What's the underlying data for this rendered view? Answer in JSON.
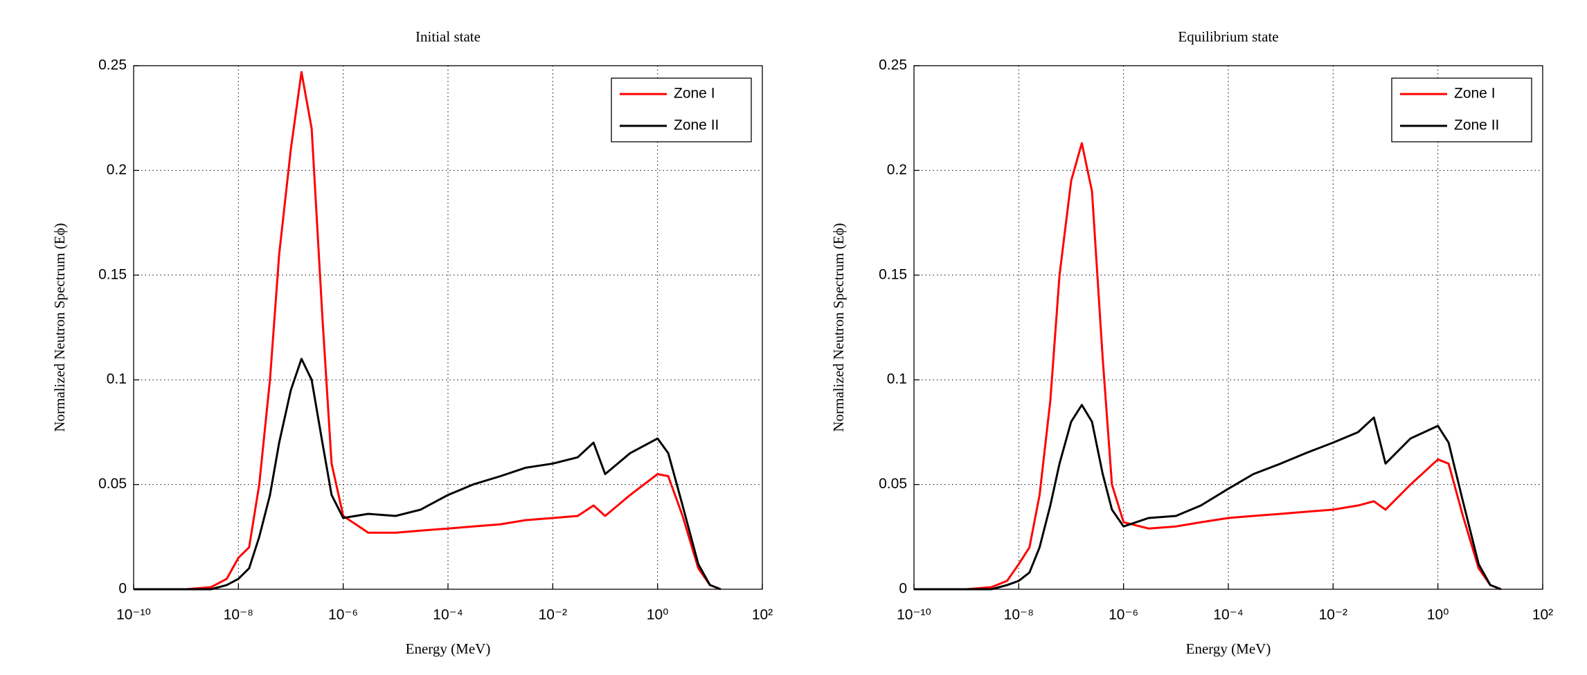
{
  "chart_data": [
    {
      "type": "line",
      "title": "Initial state",
      "xlabel": "Energy (MeV)",
      "ylabel": "Normalized Neutron Spectrum (Eϕ)",
      "xscale": "log",
      "grid": true,
      "legend": "top-right",
      "x": [
        1e-10,
        1e-09,
        3e-09,
        6e-09,
        1e-08,
        1.6e-08,
        2.5e-08,
        4e-08,
        6e-08,
        1e-07,
        1.6e-07,
        2.5e-07,
        4e-07,
        6e-07,
        1e-06,
        3e-06,
        1e-05,
        3e-05,
        0.0001,
        0.0003,
        0.001,
        0.003,
        0.01,
        0.03,
        0.06,
        0.1,
        0.3,
        1,
        1.6,
        3,
        6,
        10,
        16
      ],
      "series": [
        {
          "name": "Zone I",
          "color": "#ff0000",
          "values": [
            0,
            0,
            0.001,
            0.005,
            0.015,
            0.02,
            0.05,
            0.1,
            0.16,
            0.21,
            0.247,
            0.22,
            0.13,
            0.06,
            0.035,
            0.027,
            0.027,
            0.028,
            0.029,
            0.03,
            0.031,
            0.033,
            0.034,
            0.035,
            0.04,
            0.035,
            0.045,
            0.055,
            0.054,
            0.035,
            0.01,
            0.002,
            0
          ]
        },
        {
          "name": "Zone II",
          "color": "#000000",
          "values": [
            0,
            0,
            0,
            0.002,
            0.005,
            0.01,
            0.025,
            0.045,
            0.07,
            0.095,
            0.11,
            0.1,
            0.07,
            0.045,
            0.034,
            0.036,
            0.035,
            0.038,
            0.045,
            0.05,
            0.054,
            0.058,
            0.06,
            0.063,
            0.07,
            0.055,
            0.065,
            0.072,
            0.065,
            0.04,
            0.012,
            0.002,
            0
          ]
        }
      ],
      "xlim": [
        1e-10,
        100
      ],
      "xticks": [
        {
          "value": 1e-10,
          "label": "10⁻¹⁰"
        },
        {
          "value": 1e-08,
          "label": "10⁻⁸"
        },
        {
          "value": 1e-06,
          "label": "10⁻⁶"
        },
        {
          "value": 0.0001,
          "label": "10⁻⁴"
        },
        {
          "value": 0.01,
          "label": "10⁻²"
        },
        {
          "value": 1,
          "label": "10⁰"
        },
        {
          "value": 100,
          "label": "10²"
        }
      ],
      "ylim": [
        0,
        0.25
      ],
      "yticks": [
        0,
        0.05,
        0.1,
        0.15,
        0.2,
        0.25
      ]
    },
    {
      "type": "line",
      "title": "Equilibrium state",
      "xlabel": "Energy (MeV)",
      "ylabel": "Normalized Neutron Spectrum (Eϕ)",
      "xscale": "log",
      "grid": true,
      "legend": "top-right",
      "x": [
        1e-10,
        1e-09,
        3e-09,
        6e-09,
        1e-08,
        1.6e-08,
        2.5e-08,
        4e-08,
        6e-08,
        1e-07,
        1.6e-07,
        2.5e-07,
        4e-07,
        6e-07,
        1e-06,
        3e-06,
        1e-05,
        3e-05,
        0.0001,
        0.0003,
        0.001,
        0.003,
        0.01,
        0.03,
        0.06,
        0.1,
        0.3,
        1,
        1.6,
        3,
        6,
        10,
        16
      ],
      "series": [
        {
          "name": "Zone I",
          "color": "#ff0000",
          "values": [
            0,
            0,
            0.001,
            0.004,
            0.012,
            0.02,
            0.045,
            0.09,
            0.15,
            0.195,
            0.213,
            0.19,
            0.11,
            0.05,
            0.032,
            0.029,
            0.03,
            0.032,
            0.034,
            0.035,
            0.036,
            0.037,
            0.038,
            0.04,
            0.042,
            0.038,
            0.05,
            0.062,
            0.06,
            0.035,
            0.01,
            0.002,
            0
          ]
        },
        {
          "name": "Zone II",
          "color": "#000000",
          "values": [
            0,
            0,
            0,
            0.002,
            0.004,
            0.008,
            0.02,
            0.04,
            0.06,
            0.08,
            0.088,
            0.08,
            0.055,
            0.038,
            0.03,
            0.034,
            0.035,
            0.04,
            0.048,
            0.055,
            0.06,
            0.065,
            0.07,
            0.075,
            0.082,
            0.06,
            0.072,
            0.078,
            0.07,
            0.042,
            0.012,
            0.002,
            0
          ]
        }
      ],
      "xlim": [
        1e-10,
        100
      ],
      "xticks": [
        {
          "value": 1e-10,
          "label": "10⁻¹⁰"
        },
        {
          "value": 1e-08,
          "label": "10⁻⁸"
        },
        {
          "value": 1e-06,
          "label": "10⁻⁶"
        },
        {
          "value": 0.0001,
          "label": "10⁻⁴"
        },
        {
          "value": 0.01,
          "label": "10⁻²"
        },
        {
          "value": 1,
          "label": "10⁰"
        },
        {
          "value": 100,
          "label": "10²"
        }
      ],
      "ylim": [
        0,
        0.25
      ],
      "yticks": [
        0,
        0.05,
        0.1,
        0.15,
        0.2,
        0.25
      ]
    }
  ]
}
